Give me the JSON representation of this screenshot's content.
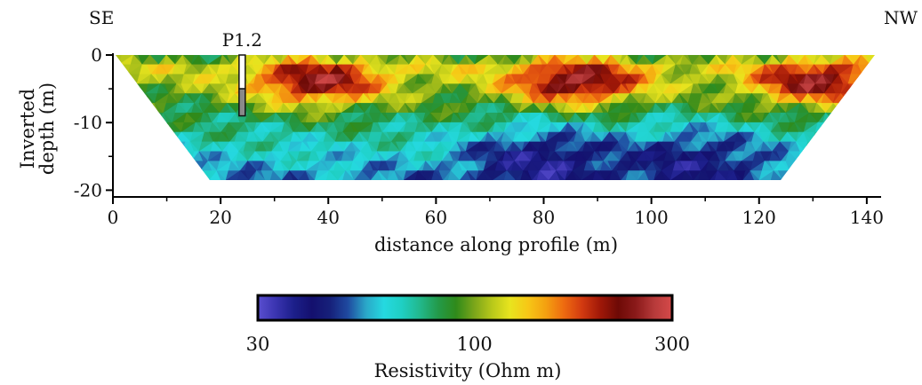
{
  "chart_data": {
    "type": "heatmap",
    "title": "",
    "xlabel": "distance along profile (m)",
    "ylabel_lines": [
      "Inverted",
      "depth (m)"
    ],
    "x_ticks": [
      0,
      20,
      40,
      60,
      80,
      100,
      120,
      140
    ],
    "y_ticks": [
      0,
      -10,
      -20
    ],
    "xlim": [
      0,
      142
    ],
    "ylim": [
      -21,
      0
    ],
    "corner_labels": {
      "left": "SE",
      "right": "NW"
    },
    "borehole": {
      "label": "P1.2",
      "x": 24,
      "depth_top": 0,
      "depth_bottom": -9
    },
    "section_outline": {
      "top_left_x": 0.5,
      "top_right_x": 141.5,
      "top_depth": 0,
      "bottom_left_x": 18,
      "bottom_right_x": 124,
      "bottom_depth": -18.5
    },
    "anomalies": [
      {
        "kind": "conductive",
        "center_x": 80,
        "center_depth": -16,
        "resistivity": 35
      },
      {
        "kind": "conductive",
        "center_x": 108,
        "center_depth": -16,
        "resistivity": 38
      },
      {
        "kind": "resistive",
        "center_x": 86,
        "center_depth": -4,
        "resistivity": 290
      },
      {
        "kind": "resistive",
        "center_x": 38,
        "center_depth": -4,
        "resistivity": 270
      },
      {
        "kind": "resistive",
        "center_x": 131,
        "center_depth": -4,
        "resistivity": 270
      }
    ],
    "colorbar": {
      "label": "Resistivity (Ohm m)",
      "scale": "log",
      "min": 30,
      "max": 300,
      "tick_labels": [
        "30",
        "100",
        "300"
      ],
      "tick_values": [
        30,
        100,
        300
      ],
      "colors": [
        "#5a4fd0",
        "#3a34b0",
        "#1c1f8a",
        "#14106e",
        "#16207a",
        "#1f4aa0",
        "#2aa7c8",
        "#25d9e0",
        "#1fcfc3",
        "#22b88c",
        "#239a4a",
        "#2f8a1a",
        "#7aa51a",
        "#b8c81a",
        "#e8e41e",
        "#f7c716",
        "#f4a010",
        "#ee6a10",
        "#d23a10",
        "#a01808",
        "#6e0a06",
        "#8b1a1a",
        "#b73a3a",
        "#d64a4a"
      ]
    }
  }
}
